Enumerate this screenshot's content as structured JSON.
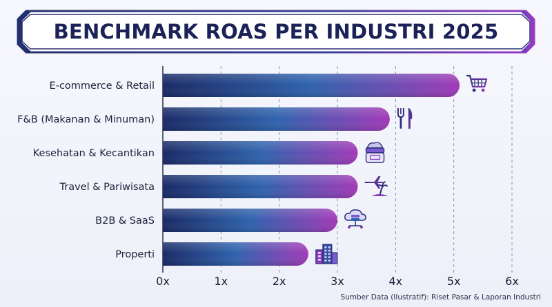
{
  "title": "BENCHMARK ROAS PER INDUSTRI 2025",
  "source_note": "Sumber Data (Ilustratif): Riset Pasar & Laporan Industri",
  "chart_data": {
    "type": "bar",
    "orientation": "horizontal",
    "title": "BENCHMARK ROAS PER INDUSTRI 2025",
    "categories": [
      "E-commerce & Retail",
      "F&B (Makanan & Minuman)",
      "Kesehatan & Kecantikan",
      "Travel & Pariwisata",
      "B2B & SaaS",
      "Properti"
    ],
    "values": [
      5.1,
      3.9,
      3.35,
      3.35,
      3.0,
      2.5
    ],
    "icons": [
      "shopping-cart-icon",
      "fork-knife-icon",
      "cosmetic-jar-icon",
      "plane-palm-icon",
      "cloud-server-icon",
      "building-icon"
    ],
    "xlim": [
      0,
      6
    ],
    "xticks": [
      "0x",
      "1x",
      "2x",
      "3x",
      "4x",
      "5x",
      "6x"
    ],
    "grid": true,
    "legend": "none",
    "colors": {
      "bar_start": "#1a2a66",
      "bar_mid": "#2f63ad",
      "bar_end": "#a13ab8",
      "title_text": "#1b2257",
      "frame": "#2b2f7a"
    }
  }
}
